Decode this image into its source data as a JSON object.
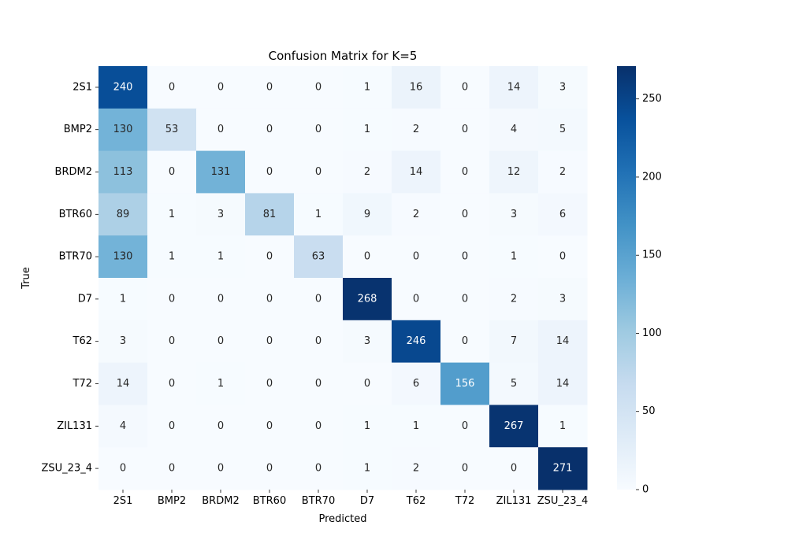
{
  "chart_data": {
    "type": "heatmap",
    "title": "Confusion Matrix for K=5",
    "xlabel": "Predicted",
    "ylabel": "True",
    "x_categories": [
      "2S1",
      "BMP2",
      "BRDM2",
      "BTR60",
      "BTR70",
      "D7",
      "T62",
      "T72",
      "ZIL131",
      "ZSU_23_4"
    ],
    "y_categories": [
      "2S1",
      "BMP2",
      "BRDM2",
      "BTR60",
      "BTR70",
      "D7",
      "T62",
      "T72",
      "ZIL131",
      "ZSU_23_4"
    ],
    "matrix": [
      [
        240,
        0,
        0,
        0,
        0,
        1,
        16,
        0,
        14,
        3
      ],
      [
        130,
        53,
        0,
        0,
        0,
        1,
        2,
        0,
        4,
        5
      ],
      [
        113,
        0,
        131,
        0,
        0,
        2,
        14,
        0,
        12,
        2
      ],
      [
        89,
        1,
        3,
        81,
        1,
        9,
        2,
        0,
        3,
        6
      ],
      [
        130,
        1,
        1,
        0,
        63,
        0,
        0,
        0,
        1,
        0
      ],
      [
        1,
        0,
        0,
        0,
        0,
        268,
        0,
        0,
        2,
        3
      ],
      [
        3,
        0,
        0,
        0,
        0,
        3,
        246,
        0,
        7,
        14
      ],
      [
        14,
        0,
        1,
        0,
        0,
        0,
        6,
        156,
        5,
        14
      ],
      [
        4,
        0,
        0,
        0,
        0,
        1,
        1,
        0,
        267,
        1
      ],
      [
        0,
        0,
        0,
        0,
        0,
        1,
        2,
        0,
        0,
        271
      ]
    ],
    "colormap": "Blues",
    "value_range": [
      0,
      271
    ],
    "colorbar_ticks": [
      0,
      50,
      100,
      150,
      200,
      250
    ],
    "colorbar_tick_labels": [
      "0",
      "50",
      "100",
      "150",
      "200",
      "250"
    ],
    "annotated": true,
    "grid": false
  }
}
